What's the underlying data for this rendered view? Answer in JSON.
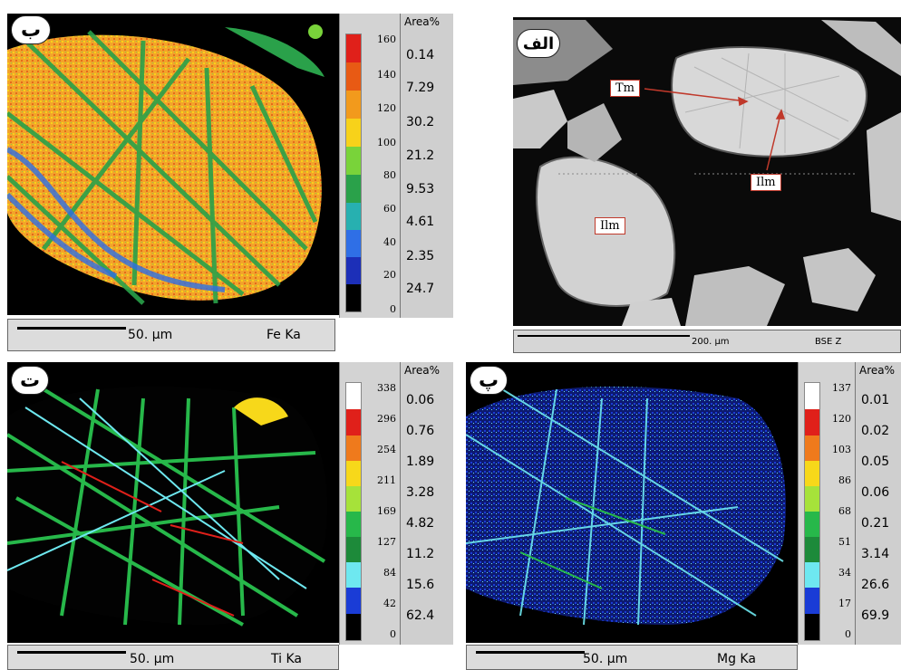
{
  "panels": {
    "fe": {
      "badge": "ب",
      "scale_text": "50. µm",
      "element": "Fe Ka",
      "ticks": [
        "160",
        "140",
        "120",
        "100",
        "80",
        "60",
        "40",
        "20",
        "0"
      ],
      "area_title": "Area%",
      "area": [
        "0.14",
        "7.29",
        "30.2",
        "21.2",
        "9.53",
        "4.61",
        "2.35",
        "24.7"
      ],
      "colors": [
        "#e0201a",
        "#e85a14",
        "#f29a1c",
        "#f7d21a",
        "#79d33a",
        "#2aa14a",
        "#27b0b0",
        "#2f6fe6",
        "#1c2fb8",
        "#000000"
      ]
    },
    "bse": {
      "badge": "الف",
      "scale_text": "200. µm",
      "element": "BSE Z",
      "labels": {
        "tm": "Tm",
        "ilm1": "Ilm",
        "ilm2": "Ilm"
      }
    },
    "ti": {
      "badge": "ت",
      "scale_text": "50. µm",
      "element": "Ti Ka",
      "ticks": [
        "338",
        "296",
        "254",
        "211",
        "169",
        "127",
        "84",
        "42",
        "0"
      ],
      "area_title": "Area%",
      "area": [
        "0.06",
        "0.76",
        "1.89",
        "3.28",
        "4.82",
        "11.2",
        "15.6",
        "62.4"
      ],
      "colors": [
        "#ffffff",
        "#e0201a",
        "#ef7a1c",
        "#f7d81a",
        "#a6e23a",
        "#27b84a",
        "#1d8a3a",
        "#6ee8f0",
        "#1a3cd6",
        "#000000"
      ]
    },
    "mg": {
      "badge": "پ",
      "scale_text": "50. µm",
      "element": "Mg Ka",
      "ticks": [
        "137",
        "120",
        "103",
        "86",
        "68",
        "51",
        "34",
        "17",
        "0"
      ],
      "area_title": "Area%",
      "area": [
        "0.01",
        "0.02",
        "0.05",
        "0.06",
        "0.21",
        "3.14",
        "26.6",
        "69.9"
      ],
      "colors": [
        "#ffffff",
        "#e0201a",
        "#ef7a1c",
        "#f7d81a",
        "#a6e23a",
        "#27b84a",
        "#1d8a3a",
        "#6ee8f0",
        "#1a3cd6",
        "#000000"
      ]
    }
  }
}
